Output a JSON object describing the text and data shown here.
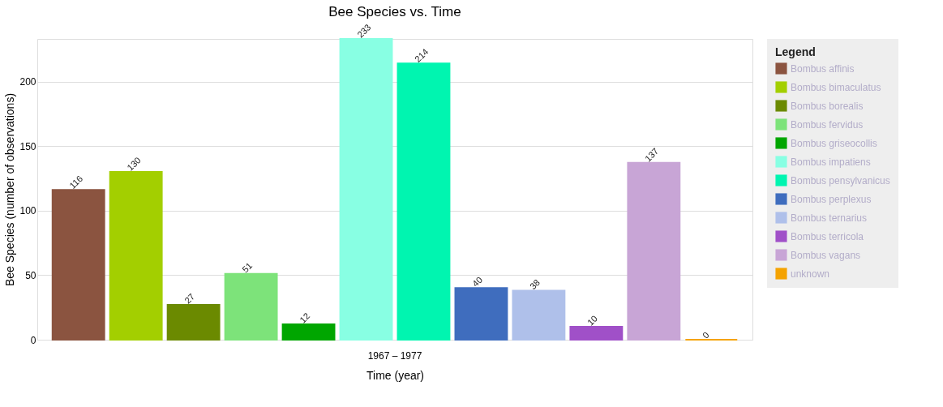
{
  "chart_data": {
    "type": "bar",
    "title": "Bee Species vs. Time",
    "xlabel": "Time (year)",
    "ylabel": "Bee Species (number of observations)",
    "legend_title": "Legend",
    "categories": [
      "1967 – 1977"
    ],
    "series": [
      {
        "name": "Bombus affinis",
        "color": "#8b5440",
        "values": [
          116
        ]
      },
      {
        "name": "Bombus bimaculatus",
        "color": "#a3cf00",
        "values": [
          130
        ]
      },
      {
        "name": "Bombus borealis",
        "color": "#6b8a00",
        "values": [
          27
        ]
      },
      {
        "name": "Bombus fervidus",
        "color": "#7de37a",
        "values": [
          51
        ]
      },
      {
        "name": "Bombus griseocollis",
        "color": "#00a600",
        "values": [
          12
        ]
      },
      {
        "name": "Bombus impatiens",
        "color": "#88ffe3",
        "values": [
          233
        ]
      },
      {
        "name": "Bombus pensylvanicus",
        "color": "#00f5b0",
        "values": [
          214
        ]
      },
      {
        "name": "Bombus perplexus",
        "color": "#3f6dbe",
        "values": [
          40
        ]
      },
      {
        "name": "Bombus ternarius",
        "color": "#afc0ea",
        "values": [
          38
        ]
      },
      {
        "name": "Bombus terricola",
        "color": "#a050c8",
        "values": [
          10
        ]
      },
      {
        "name": "Bombus vagans",
        "color": "#c8a5d6",
        "values": [
          137
        ]
      },
      {
        "name": "unknown",
        "color": "#f5a300",
        "values": [
          0
        ]
      }
    ],
    "ylim": [
      0,
      233
    ],
    "yticks": [
      0,
      50,
      100,
      150,
      200
    ],
    "grid": "y",
    "legend": "top right",
    "data_labels": true
  }
}
